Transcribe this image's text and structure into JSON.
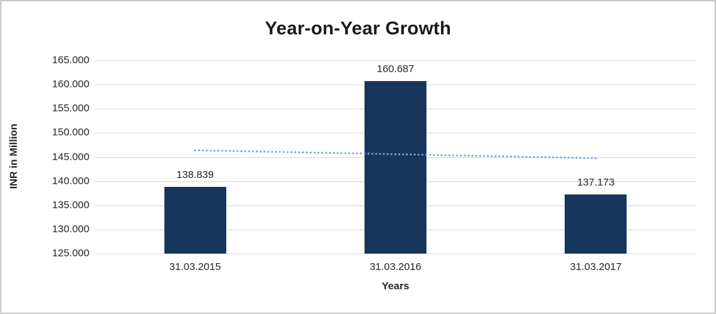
{
  "chart_data": {
    "type": "bar",
    "title": "Year-on-Year Growth",
    "xlabel": "Years",
    "ylabel": "INR in Million",
    "categories": [
      "31.03.2015",
      "31.03.2016",
      "31.03.2017"
    ],
    "values": [
      138.839,
      160.687,
      137.173
    ],
    "value_labels": [
      "138.839",
      "160.687",
      "137.173"
    ],
    "ylim": [
      125,
      165
    ],
    "ytick_step": 5,
    "yticks": [
      {
        "value": 125,
        "label": "125.000"
      },
      {
        "value": 130,
        "label": "130.000"
      },
      {
        "value": 135,
        "label": "135.000"
      },
      {
        "value": 140,
        "label": "140.000"
      },
      {
        "value": 145,
        "label": "145.000"
      },
      {
        "value": 150,
        "label": "150.000"
      },
      {
        "value": 155,
        "label": "155.000"
      },
      {
        "value": 160,
        "label": "160.000"
      },
      {
        "value": 165,
        "label": "165.000"
      }
    ],
    "grid": true,
    "legend": "none",
    "bar_color": "#16365C",
    "gridline_color": "#d9d9d9",
    "trendline": {
      "type": "linear",
      "style": "dotted",
      "color": "#6FA8DC",
      "start_value": 146.4,
      "end_value": 144.75
    }
  }
}
